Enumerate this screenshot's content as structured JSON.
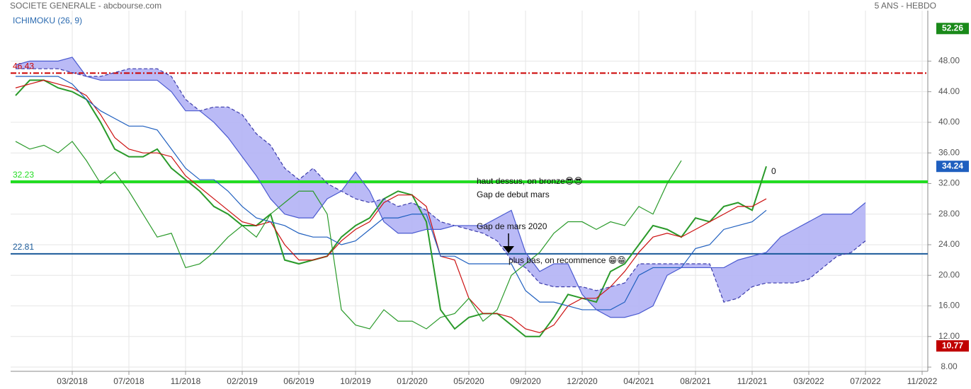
{
  "chart_data": {
    "type": "ichimoku",
    "title": "SOCIETE GENERALE - abcbourse.com",
    "subtitle": "5 ANS - HEBDO",
    "indicator": "ICHIMOKU (26, 9)",
    "categories": [
      null,
      null,
      null,
      null,
      "03/2018",
      null,
      null,
      null,
      "07/2018",
      null,
      null,
      null,
      "11/2018",
      null,
      null,
      null,
      "02/2019",
      null,
      null,
      null,
      "06/2019",
      null,
      null,
      null,
      "10/2019",
      null,
      null,
      null,
      "01/2020",
      null,
      null,
      null,
      "05/2020",
      null,
      null,
      null,
      "09/2020",
      null,
      null,
      null,
      "12/2020",
      null,
      null,
      null,
      "04/2021",
      null,
      null,
      null,
      "08/2021",
      null,
      null,
      null,
      "11/2021",
      null,
      null,
      null,
      "03/2022",
      null,
      null,
      null,
      "07/2022",
      null,
      null,
      null,
      "11/2022"
    ],
    "series": [
      {
        "color": "#2a9a2a",
        "values": [
          43.5,
          45.5,
          45.5,
          44.5,
          44,
          43,
          40,
          36.5,
          35.5,
          35.5,
          36.5,
          34,
          32.5,
          31,
          29,
          28,
          26.5,
          26.5,
          28,
          22,
          21.5,
          22,
          22.5,
          25,
          26.5,
          27.5,
          30,
          31,
          30.5,
          27,
          15.5,
          13,
          14.5,
          15,
          15,
          13.5,
          12,
          12,
          14.5,
          17.5,
          17,
          16.5,
          20.5,
          21.5,
          24,
          26.5,
          26,
          25,
          27.5,
          27,
          29,
          29.5,
          28.5,
          34.24,
          null,
          null,
          null,
          null,
          null,
          null,
          null,
          null,
          null,
          null,
          null
        ]
      },
      {
        "color": "#cc1111",
        "values": [
          44.5,
          45,
          45.5,
          45,
          44.5,
          43.5,
          41,
          38,
          36.5,
          36,
          36,
          35.5,
          33,
          31.5,
          30,
          28.5,
          27,
          26.5,
          27,
          24,
          22,
          22,
          22.5,
          24.5,
          26,
          27,
          29.5,
          30.5,
          30.5,
          29,
          22.5,
          22,
          17,
          15,
          15,
          14.5,
          13,
          12.5,
          13.5,
          16,
          17,
          17,
          18.5,
          20.5,
          23,
          25,
          25.5,
          25,
          26,
          27,
          28,
          29,
          29,
          30,
          null,
          null,
          null,
          null,
          null,
          null,
          null,
          null,
          null,
          null,
          null
        ]
      },
      {
        "color": "#1f5fbf",
        "values": [
          46,
          46,
          46,
          46,
          45,
          43,
          41.5,
          40.5,
          39.5,
          39.5,
          39,
          36.5,
          34,
          32.5,
          32.5,
          31,
          29,
          27.5,
          27,
          26.5,
          25.5,
          25,
          25,
          24,
          24.5,
          26,
          27.5,
          27.5,
          28,
          28,
          22.5,
          22.5,
          21.5,
          21.5,
          21.5,
          21.5,
          18,
          16.5,
          16.5,
          16,
          15.5,
          15.5,
          15.5,
          16.5,
          20,
          21,
          21,
          21,
          23.5,
          24,
          26,
          26.5,
          27,
          28.5,
          null,
          null,
          null,
          null,
          null,
          null,
          null,
          null,
          null,
          null,
          null
        ]
      },
      {
        "color": "#2a9a2a",
        "values": [
          37.5,
          36.5,
          37,
          36,
          37.5,
          35,
          32,
          33.5,
          31,
          28,
          25,
          25.5,
          21,
          21.5,
          23,
          25,
          26.5,
          25,
          28,
          29.5,
          31,
          31,
          28,
          15.5,
          13.5,
          13,
          15.5,
          14,
          14,
          13,
          14.5,
          15,
          17,
          14,
          15.5,
          20,
          21.5,
          23,
          25.5,
          27,
          27,
          26,
          27,
          26.5,
          29,
          28,
          32,
          35,
          null,
          null,
          null,
          null,
          null,
          null,
          null,
          null,
          null,
          null,
          null,
          null,
          null,
          null,
          null,
          null,
          null
        ]
      },
      {
        "color": "#3a3aaa",
        "dashed": true,
        "values": [
          47,
          47,
          47,
          47,
          46.5,
          46,
          46,
          46.5,
          47,
          47,
          47,
          46,
          43,
          41.5,
          42,
          42,
          41,
          38.5,
          37,
          34,
          32.5,
          34,
          32,
          31,
          30,
          29.5,
          30,
          29,
          29.5,
          28.5,
          27,
          26.5,
          26,
          25.5,
          24.5,
          22,
          21,
          19,
          18.5,
          18.5,
          18.5,
          18,
          18.5,
          19,
          21.5,
          21.5,
          21.5,
          21.5,
          21.5,
          21.5,
          16.5,
          17,
          18.5,
          19,
          19,
          19,
          19.5,
          21,
          22.5,
          23,
          24.5,
          null,
          null,
          null,
          null
        ]
      },
      {
        "color": "#4a5ad0",
        "values": [
          47.5,
          48,
          48,
          48,
          48.5,
          46,
          45.5,
          45.5,
          45.5,
          45.5,
          45.5,
          44,
          41.5,
          41.5,
          40,
          38,
          35.5,
          33,
          30,
          28,
          27.5,
          27.5,
          30,
          31,
          33.5,
          31,
          27,
          25.5,
          25.5,
          26,
          26,
          26.5,
          26.5,
          26.5,
          27.5,
          28.5,
          23,
          20.5,
          21.5,
          21.5,
          17.5,
          15.5,
          14.5,
          14.5,
          15,
          16,
          20,
          21,
          21,
          21,
          21,
          22,
          22.5,
          23,
          25,
          26,
          27,
          28,
          28,
          28,
          29.5,
          null,
          null,
          null,
          null
        ]
      }
    ],
    "cloud_color": "#b3b3f5",
    "levels": [
      {
        "value": 46.43,
        "color": "#cc0000",
        "style": "dashdot"
      },
      {
        "value": 32.23,
        "color": "#22dd22",
        "style": "bold"
      },
      {
        "value": 22.81,
        "color": "#1a5a9a",
        "style": "solid"
      }
    ],
    "price_tags": [
      {
        "value": 52.26,
        "color": "#1a8a1a"
      },
      {
        "value": 34.24,
        "color": "#1f5fbf"
      },
      {
        "value": 10.77,
        "color": "#c00000"
      }
    ],
    "annotations": [
      "haut dessus, on bronze😎😎",
      "Gap de debut mars",
      "Gap de mars 2020",
      "plus bas, on recommence 😁😁",
      "0"
    ],
    "ylim": [
      7.45,
      54.6
    ],
    "yticks": [
      {
        "value": 8,
        "label": "8.00"
      },
      {
        "value": 12,
        "label": "12.00"
      },
      {
        "value": 16,
        "label": "16.00"
      },
      {
        "value": 20,
        "label": "20.00"
      },
      {
        "value": 24,
        "label": "24.00"
      },
      {
        "value": 28,
        "label": "28.00"
      },
      {
        "value": 32,
        "label": "32.00"
      },
      {
        "value": 36,
        "label": "36.00"
      },
      {
        "value": 40,
        "label": "40.00"
      },
      {
        "value": 44,
        "label": "44.00"
      },
      {
        "value": 48,
        "label": "48.00"
      }
    ],
    "grid": true
  }
}
